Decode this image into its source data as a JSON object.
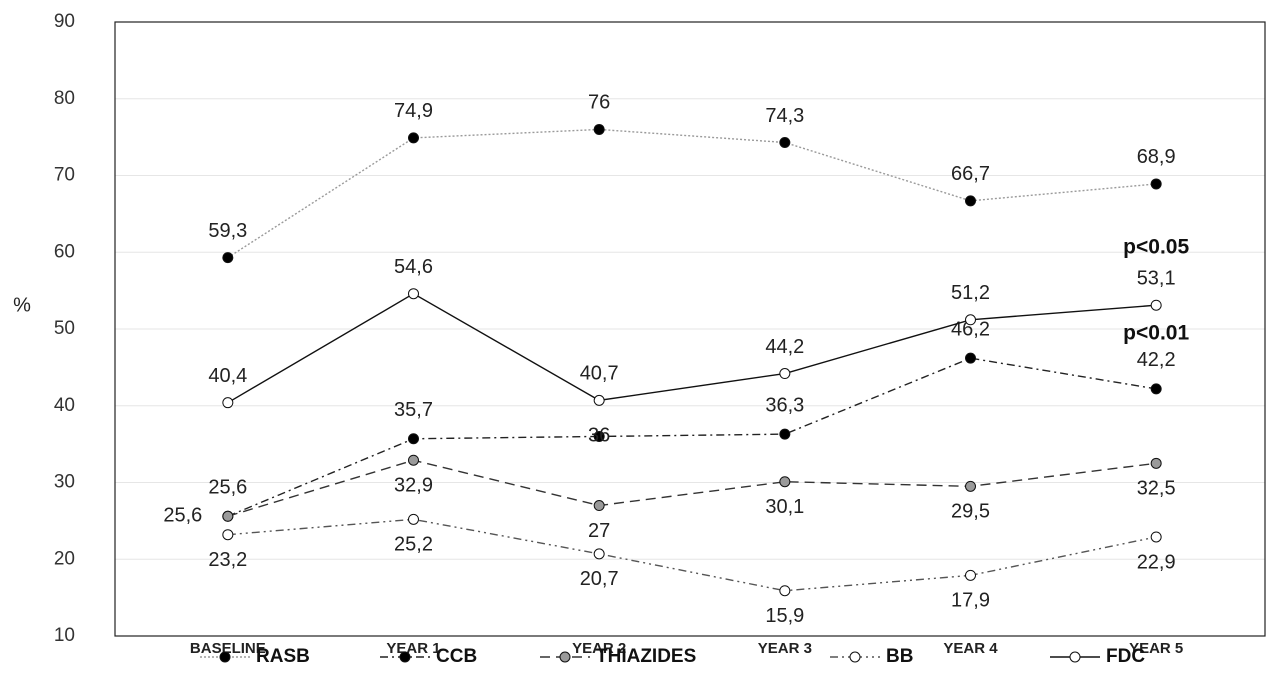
{
  "chart_data": {
    "type": "line",
    "y_label": "%",
    "categories": [
      "BASELINE",
      "YEAR 1",
      "YEAR 2",
      "YEAR 3",
      "YEAR 4",
      "YEAR 5"
    ],
    "ylim": [
      10,
      90
    ],
    "yticks": [
      10,
      20,
      30,
      40,
      50,
      60,
      70,
      80,
      90
    ],
    "grid": true,
    "legend": "bottom",
    "series": [
      {
        "name": "RASB",
        "color": "#9a9a9a",
        "marker_color": "#000000",
        "values": [
          59.3,
          74.9,
          76,
          74.3,
          66.7,
          68.9
        ],
        "value_labels": [
          "59,3",
          "74,9",
          "76",
          "74,3",
          "66,7",
          "68,9"
        ]
      },
      {
        "name": "CCB",
        "color": "#222222",
        "marker_color": "#000000",
        "values": [
          25.6,
          35.7,
          36,
          36.3,
          46.2,
          42.2
        ],
        "value_labels": [
          "25,6",
          "35,7",
          "36",
          "36,3",
          "46,2",
          "42,2"
        ]
      },
      {
        "name": "THIAZIDES",
        "color": "#333333",
        "marker_color": "#9a9a9a",
        "values": [
          25.6,
          32.9,
          27,
          30.1,
          29.5,
          32.5
        ],
        "value_labels": [
          "25,6",
          "32,9",
          "27",
          "30,1",
          "29,5",
          "32,5"
        ]
      },
      {
        "name": "BB",
        "color": "#555555",
        "marker_color": "#ffffff",
        "values": [
          23.2,
          25.2,
          20.7,
          15.9,
          17.9,
          22.9
        ],
        "value_labels": [
          "23,2",
          "25,2",
          "20,7",
          "15,9",
          "17,9",
          "22,9"
        ]
      },
      {
        "name": "FDC",
        "color": "#111111",
        "marker_color": "#ffffff",
        "values": [
          40.4,
          54.6,
          40.7,
          44.2,
          51.2,
          53.1
        ],
        "value_labels": [
          "40,4",
          "54,6",
          "40,7",
          "44,2",
          "51,2",
          "53,1"
        ]
      }
    ],
    "annotations": [
      "p<0.05",
      "p<0.01"
    ]
  }
}
